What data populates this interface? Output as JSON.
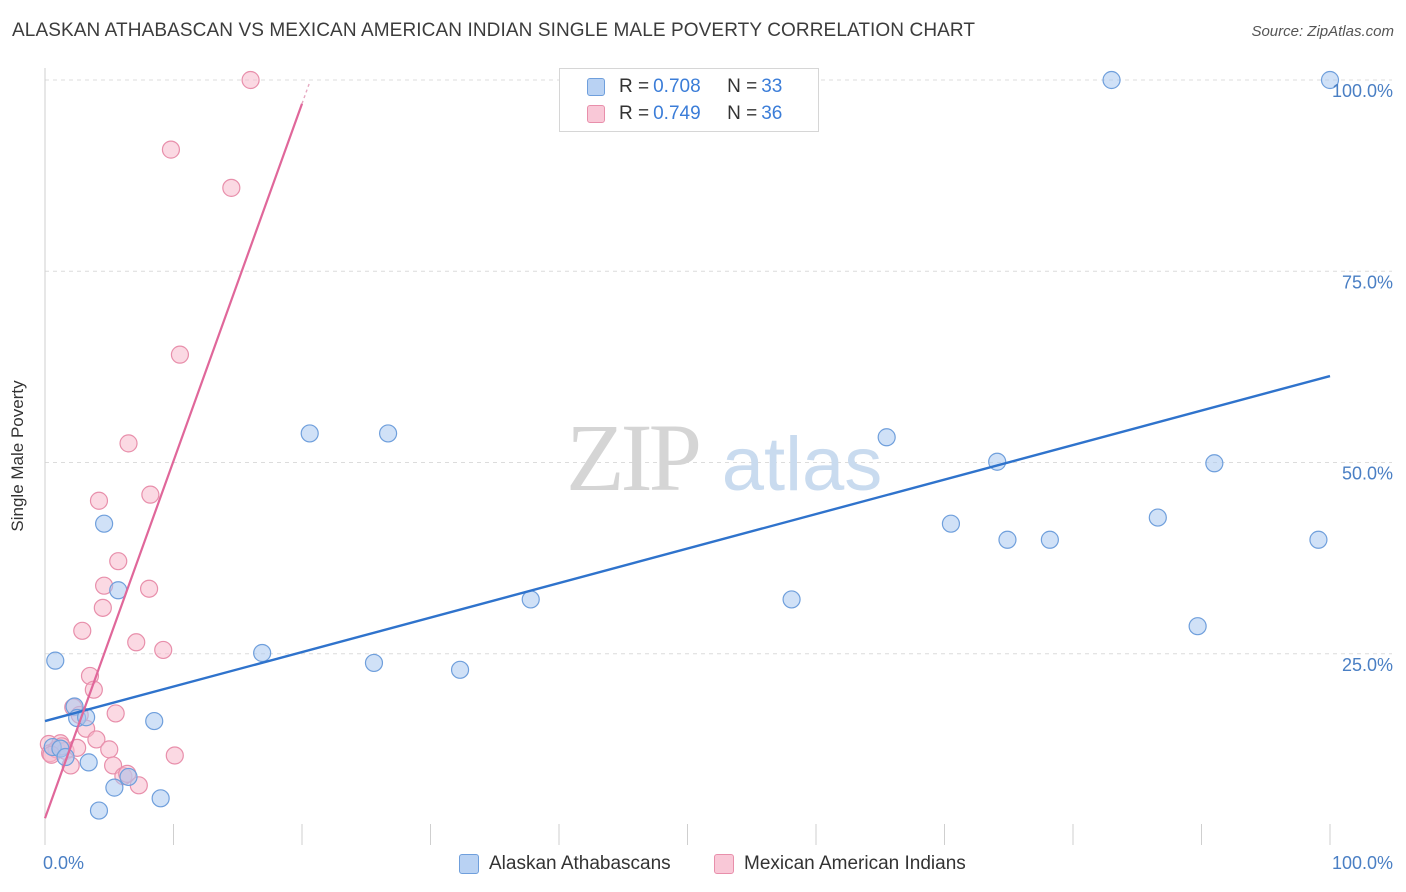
{
  "header": {
    "title": "ALASKAN ATHABASCAN VS MEXICAN AMERICAN INDIAN SINGLE MALE POVERTY CORRELATION CHART",
    "source": "Source: ZipAtlas.com"
  },
  "watermark": {
    "zip": "ZIP",
    "atlas": "atlas"
  },
  "legend_top": [
    {
      "r_label": "R = ",
      "r_value": "0.708",
      "n_label": "N = ",
      "n_value": "33"
    },
    {
      "r_label": "R = ",
      "r_value": "0.749",
      "n_label": "N = ",
      "n_value": "36"
    }
  ],
  "colors": {
    "series1_fill": "#a9c8f0",
    "series1_stroke": "#6f9fdc",
    "series1_line": "#2f73cc",
    "series2_fill": "#f7b9cc",
    "series2_stroke": "#e88fab",
    "series2_line": "#e0679a",
    "tick_label": "#4a7fc4"
  },
  "chart_data": {
    "type": "scatter",
    "title": "ALASKAN ATHABASCAN VS MEXICAN AMERICAN INDIAN SINGLE MALE POVERTY CORRELATION CHART",
    "xlabel": "",
    "ylabel": "Single Male Poverty",
    "xlim": [
      0,
      100
    ],
    "ylim": [
      0,
      100
    ],
    "x_tick_labels": [
      "0.0%",
      "100.0%"
    ],
    "y_ticks": [
      {
        "value": 25,
        "label": "25.0%"
      },
      {
        "value": 50,
        "label": "50.0%"
      },
      {
        "value": 75,
        "label": "75.0%"
      },
      {
        "value": 100,
        "label": "100.0%"
      }
    ],
    "grid": true,
    "series": [
      {
        "name": "Alaskan Athabascans",
        "r": 0.708,
        "n": 33,
        "trend": {
          "x": [
            0,
            100
          ],
          "y": [
            16.2,
            61.3
          ]
        },
        "points": [
          [
            0.8,
            24.1
          ],
          [
            0.6,
            12.8
          ],
          [
            1.2,
            12.6
          ],
          [
            1.6,
            11.5
          ],
          [
            2.3,
            18.1
          ],
          [
            2.5,
            16.6
          ],
          [
            3.2,
            16.7
          ],
          [
            3.4,
            10.8
          ],
          [
            4.2,
            4.5
          ],
          [
            4.6,
            42.0
          ],
          [
            5.4,
            7.5
          ],
          [
            5.7,
            33.3
          ],
          [
            6.5,
            8.9
          ],
          [
            8.5,
            16.2
          ],
          [
            9.0,
            6.1
          ],
          [
            16.9,
            25.1
          ],
          [
            20.6,
            53.8
          ],
          [
            25.6,
            23.8
          ],
          [
            26.7,
            53.8
          ],
          [
            32.3,
            22.9
          ],
          [
            37.8,
            32.1
          ],
          [
            58.1,
            32.1
          ],
          [
            65.5,
            53.3
          ],
          [
            70.5,
            42.0
          ],
          [
            74.1,
            50.1
          ],
          [
            74.9,
            39.9
          ],
          [
            78.2,
            39.9
          ],
          [
            83.0,
            100.0
          ],
          [
            86.6,
            42.8
          ],
          [
            89.7,
            28.6
          ],
          [
            91.0,
            49.9
          ],
          [
            99.1,
            39.9
          ],
          [
            100.0,
            100.0
          ]
        ]
      },
      {
        "name": "Mexican American Indians",
        "r": 0.749,
        "n": 36,
        "trend": {
          "x": [
            0,
            20
          ],
          "y": [
            3.5,
            96.9
          ]
        },
        "points": [
          [
            0.3,
            13.2
          ],
          [
            0.4,
            12.0
          ],
          [
            0.9,
            12.5
          ],
          [
            1.2,
            13.3
          ],
          [
            1.6,
            12.3
          ],
          [
            2.0,
            10.4
          ],
          [
            2.2,
            18.0
          ],
          [
            2.5,
            12.7
          ],
          [
            2.9,
            28.0
          ],
          [
            3.2,
            15.2
          ],
          [
            3.5,
            22.1
          ],
          [
            3.8,
            20.3
          ],
          [
            4.0,
            13.8
          ],
          [
            4.2,
            45.0
          ],
          [
            4.5,
            31.0
          ],
          [
            4.6,
            33.9
          ],
          [
            5.0,
            12.5
          ],
          [
            5.3,
            10.4
          ],
          [
            5.5,
            17.2
          ],
          [
            5.7,
            37.1
          ],
          [
            6.1,
            9.0
          ],
          [
            6.4,
            9.3
          ],
          [
            6.5,
            52.5
          ],
          [
            7.1,
            26.5
          ],
          [
            7.3,
            7.8
          ],
          [
            8.1,
            33.5
          ],
          [
            8.2,
            45.8
          ],
          [
            9.2,
            25.5
          ],
          [
            9.8,
            90.9
          ],
          [
            10.1,
            11.7
          ],
          [
            10.5,
            64.1
          ],
          [
            14.5,
            85.9
          ],
          [
            16.0,
            100.0
          ],
          [
            1.3,
            12.9
          ],
          [
            2.7,
            17.0
          ],
          [
            0.5,
            11.8
          ]
        ]
      }
    ]
  }
}
